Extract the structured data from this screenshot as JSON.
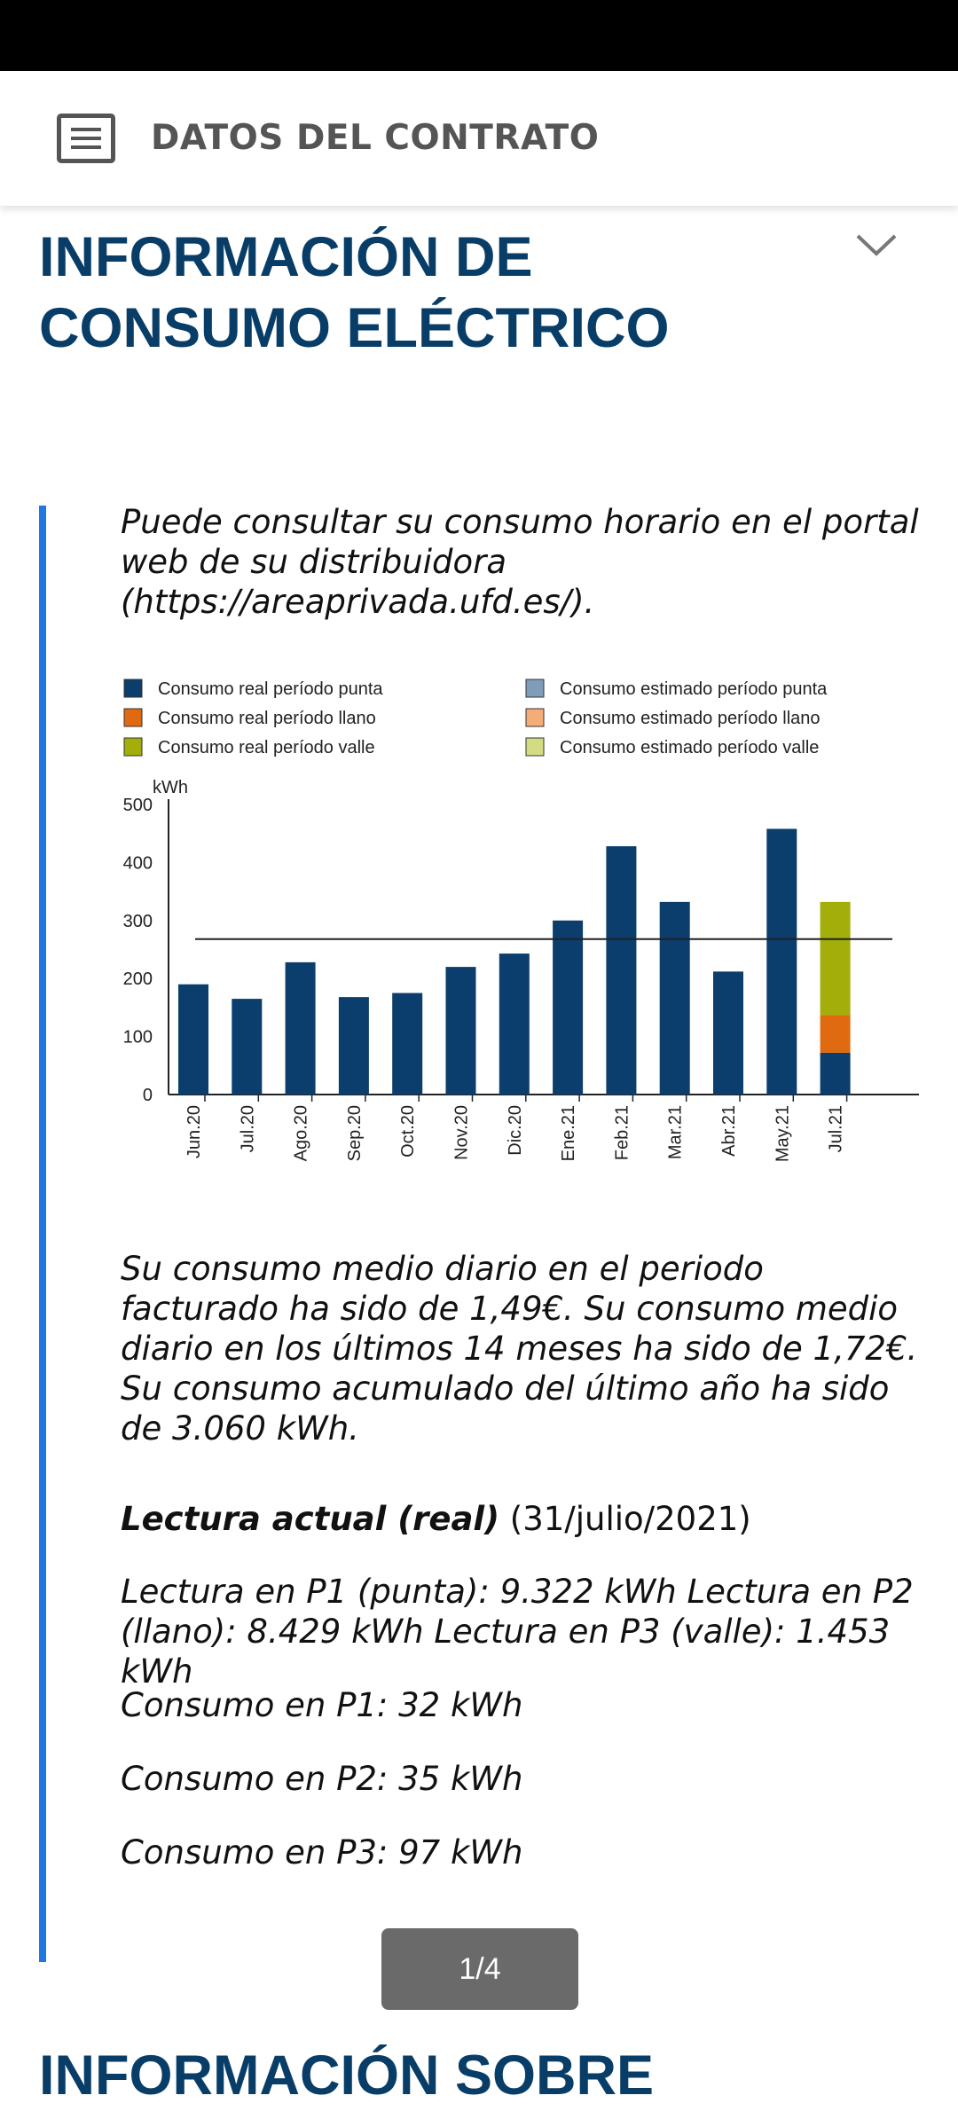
{
  "header": {
    "title": "DATOS DEL CONTRATO",
    "menu_icon": "menu-list-icon"
  },
  "section": {
    "title_line1": "INFORMACIÓN DE",
    "title_line2": "CONSUMO ELÉCTRICO",
    "toggle_icon": "chevron-down-icon"
  },
  "intro": "Puede consultar su consumo horario en el portal web de su distribuidora (https://areaprivada.ufd.es/).",
  "chart_data": {
    "type": "bar",
    "ylabel": "kWh",
    "ylim": [
      0,
      500
    ],
    "yticks": [
      0,
      100,
      200,
      300,
      400,
      500
    ],
    "categories": [
      "Jun.20",
      "Jul.20",
      "Ago.20",
      "Sep.20",
      "Oct.20",
      "Nov.20",
      "Dic.20",
      "Ene.21",
      "Feb.21",
      "Mar.21",
      "Abr.21",
      "May.21",
      "Jul.21"
    ],
    "stacked": true,
    "series": [
      {
        "name": "Consumo real período punta",
        "color": "#0b3e6c",
        "values": [
          190,
          165,
          228,
          168,
          175,
          220,
          243,
          300,
          428,
          332,
          212,
          458,
          72
        ]
      },
      {
        "name": "Consumo real período llano",
        "color": "#e06a10",
        "values": [
          0,
          0,
          0,
          0,
          0,
          0,
          0,
          0,
          0,
          0,
          0,
          0,
          65
        ]
      },
      {
        "name": "Consumo real período valle",
        "color": "#a3ae0a",
        "values": [
          0,
          0,
          0,
          0,
          0,
          0,
          0,
          0,
          0,
          0,
          0,
          0,
          195
        ]
      },
      {
        "name": "Consumo estimado período punta",
        "color": "#7f9db8",
        "values": [
          0,
          0,
          0,
          0,
          0,
          0,
          0,
          0,
          0,
          0,
          0,
          0,
          0
        ]
      },
      {
        "name": "Consumo estimado período llano",
        "color": "#f4ad78",
        "values": [
          0,
          0,
          0,
          0,
          0,
          0,
          0,
          0,
          0,
          0,
          0,
          0,
          0
        ]
      },
      {
        "name": "Consumo estimado período valle",
        "color": "#d3dc82",
        "values": [
          0,
          0,
          0,
          0,
          0,
          0,
          0,
          0,
          0,
          0,
          0,
          0,
          0
        ]
      }
    ],
    "average_line": 268,
    "legend_position": "top",
    "grid": false
  },
  "summary": "Su consumo medio diario en el periodo facturado ha sido de 1,49€. Su consumo medio diario en los últimos 14 meses ha sido de 1,72€. Su consumo acumulado del último año ha sido de 3.060 kWh.",
  "reading": {
    "label": "Lectura actual (real)",
    "date": "(31/julio/2021)",
    "values": "Lectura en P1 (punta): 9.322 kWh Lectura en P2 (llano): 8.429 kWh Lectura en P3 (valle): 1.453 kWh",
    "p1": "Consumo en P1: 32 kWh",
    "p2": "Consumo en P2: 35 kWh",
    "p3": "Consumo en P3: 97 kWh"
  },
  "pager": {
    "label": "1/4"
  },
  "next_section": {
    "title": "INFORMACIÓN SOBRE"
  }
}
